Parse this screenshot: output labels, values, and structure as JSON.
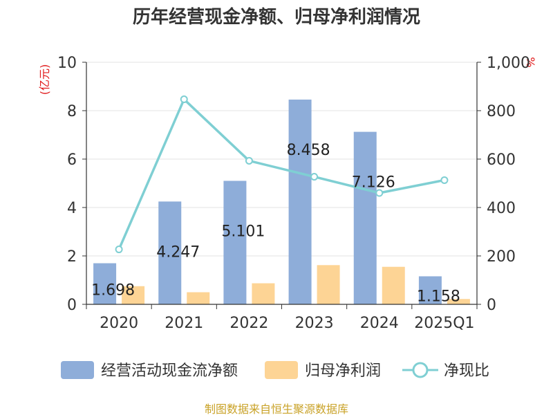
{
  "chart_data": {
    "type": "bar",
    "title": "历年经营现金净额、归母净利润情况",
    "categories": [
      "2020",
      "2021",
      "2022",
      "2023",
      "2024",
      "2025Q1"
    ],
    "series": [
      {
        "name": "经营活动现金流净额",
        "kind": "bar",
        "axis": "left",
        "color": "#8eadd9",
        "values": [
          1.698,
          4.247,
          5.101,
          8.458,
          7.126,
          1.158
        ],
        "labels": [
          "1.698",
          "4.247",
          "5.101",
          "8.458",
          "7.126",
          "1.158"
        ]
      },
      {
        "name": "归母净利润",
        "kind": "bar",
        "axis": "left",
        "color": "#fdd495",
        "values": [
          0.75,
          0.5,
          0.87,
          1.62,
          1.55,
          0.22
        ]
      },
      {
        "name": "净现比",
        "kind": "line",
        "axis": "right",
        "color": "#7fcfd3",
        "values": [
          227,
          847,
          593,
          527,
          460,
          513
        ]
      }
    ],
    "left_axis": {
      "unit": "(亿元)",
      "ylim": [
        0,
        10
      ],
      "ticks": [
        "0",
        "2",
        "4",
        "6",
        "8",
        "10"
      ]
    },
    "right_axis": {
      "unit": "%",
      "ylim": [
        0,
        1000
      ],
      "ticks": [
        "0",
        "200",
        "400",
        "600",
        "800",
        "1,000"
      ]
    },
    "grid": true,
    "legend_position": "bottom"
  },
  "source": "制图数据来自恒生聚源数据库"
}
